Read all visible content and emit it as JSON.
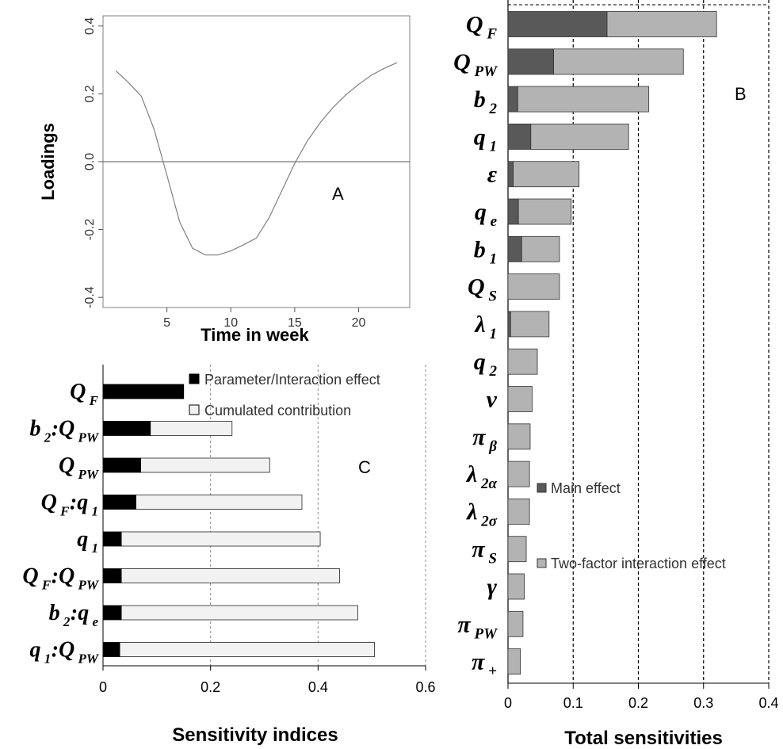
{
  "chart_data": [
    {
      "panel": "A",
      "type": "line",
      "title": "",
      "panel_label": "A",
      "xlabel": "Time in week",
      "ylabel": "Loadings",
      "xlim": [
        0,
        24
      ],
      "ylim": [
        -0.43,
        0.43
      ],
      "x_ticks": [
        5,
        10,
        15,
        20
      ],
      "y_ticks": [
        -0.4,
        -0.2,
        0.0,
        0.2,
        0.4
      ],
      "y_tick_labels": [
        "-0.4",
        "-0.2",
        "0.0",
        "0.2",
        "0.4"
      ],
      "reference_line_y": 0,
      "series": [
        {
          "x": [
            1,
            2,
            3,
            4,
            5,
            6,
            7,
            8,
            9,
            10,
            11,
            12,
            13,
            14,
            15,
            16,
            17,
            18,
            19,
            20,
            21,
            22,
            23
          ],
          "y": [
            0.268,
            0.233,
            0.193,
            0.095,
            -0.04,
            -0.178,
            -0.255,
            -0.275,
            -0.275,
            -0.263,
            -0.245,
            -0.225,
            -0.165,
            -0.085,
            -0.005,
            0.062,
            0.115,
            0.16,
            0.197,
            0.228,
            0.255,
            0.275,
            0.292
          ]
        }
      ]
    },
    {
      "panel": "B",
      "type": "bar",
      "orientation": "horizontal",
      "stacked": true,
      "panel_label": "B",
      "title": "",
      "xlabel": "Total sensitivities",
      "ylabel": "",
      "xlim": [
        0,
        0.4
      ],
      "x_ticks": [
        0,
        0.1,
        0.2,
        0.3,
        0.4
      ],
      "x_tick_labels": [
        "0",
        "0.1",
        "0.2",
        "0.3",
        "0.4"
      ],
      "grid": "vertical dashed lines at 0.1, 0.2, 0.3, 0.4",
      "legend_position": "lower-middle",
      "categories": [
        {
          "base": "Q",
          "sub": "F"
        },
        {
          "base": "Q",
          "sub": "PW"
        },
        {
          "base": "b",
          "sub": "2"
        },
        {
          "base": "q",
          "sub": "1"
        },
        {
          "base": "ε",
          "sub": ""
        },
        {
          "base": "q",
          "sub": "e"
        },
        {
          "base": "b",
          "sub": "1"
        },
        {
          "base": "Q",
          "sub": "S"
        },
        {
          "base": "λ",
          "sub": "1"
        },
        {
          "base": "q",
          "sub": "2"
        },
        {
          "base": "ν",
          "sub": ""
        },
        {
          "base": "π",
          "sub": "β"
        },
        {
          "base": "λ",
          "sub": "2α"
        },
        {
          "base": "λ",
          "sub": "2σ"
        },
        {
          "base": "π",
          "sub": "S"
        },
        {
          "base": "γ",
          "sub": ""
        },
        {
          "base": "π",
          "sub": "PW"
        },
        {
          "base": "π",
          "sub": "+"
        }
      ],
      "series": [
        {
          "name": "Main effect",
          "color": "#595959",
          "values": [
            0.152,
            0.07,
            0.015,
            0.035,
            0.008,
            0.016,
            0.021,
            0.0,
            0.004,
            0.0,
            0.0,
            0.0,
            0.0,
            0.0,
            0.0,
            0.0,
            0.0,
            0.0
          ]
        },
        {
          "name": "Two-factor interaction effect",
          "color": "#b3b3b3",
          "values": [
            0.168,
            0.199,
            0.201,
            0.15,
            0.101,
            0.081,
            0.058,
            0.079,
            0.059,
            0.045,
            0.037,
            0.034,
            0.033,
            0.033,
            0.028,
            0.025,
            0.023,
            0.019
          ]
        }
      ]
    },
    {
      "panel": "C",
      "type": "bar",
      "orientation": "horizontal",
      "stacked": true,
      "panel_label": "C",
      "title": "",
      "xlabel": "Sensitivity indices",
      "ylabel": "",
      "xlim": [
        0,
        0.6
      ],
      "x_ticks": [
        0,
        0.2,
        0.4,
        0.6
      ],
      "x_tick_labels": [
        "0",
        "0.2",
        "0.4",
        "0.6"
      ],
      "grid": "vertical dashed lines at 0.2, 0.4, 0.6",
      "legend_position": "top-right",
      "categories": [
        [
          {
            "base": "Q",
            "sub": "F"
          }
        ],
        [
          {
            "base": "b",
            "sub": "2"
          },
          {
            "base": "Q",
            "sub": "PW"
          }
        ],
        [
          {
            "base": "Q",
            "sub": "PW"
          }
        ],
        [
          {
            "base": "Q",
            "sub": "F"
          },
          {
            "base": "q",
            "sub": "1"
          }
        ],
        [
          {
            "base": "q",
            "sub": "1"
          }
        ],
        [
          {
            "base": "Q",
            "sub": "F"
          },
          {
            "base": "Q",
            "sub": "PW"
          }
        ],
        [
          {
            "base": "b",
            "sub": "2"
          },
          {
            "base": "q",
            "sub": "e"
          }
        ],
        [
          {
            "base": "q",
            "sub": "1"
          },
          {
            "base": "Q",
            "sub": "PW"
          }
        ]
      ],
      "series": [
        {
          "name": "Parameter/Interaction effect",
          "color": "#000000",
          "values": [
            0.15,
            0.088,
            0.07,
            0.061,
            0.034,
            0.034,
            0.034,
            0.031
          ]
        },
        {
          "name": "Cumulated contribution",
          "color": "#f2f2f2",
          "cumulative_totals": [
            0.15,
            0.24,
            0.31,
            0.37,
            0.404,
            0.44,
            0.474,
            0.505
          ]
        }
      ]
    }
  ]
}
